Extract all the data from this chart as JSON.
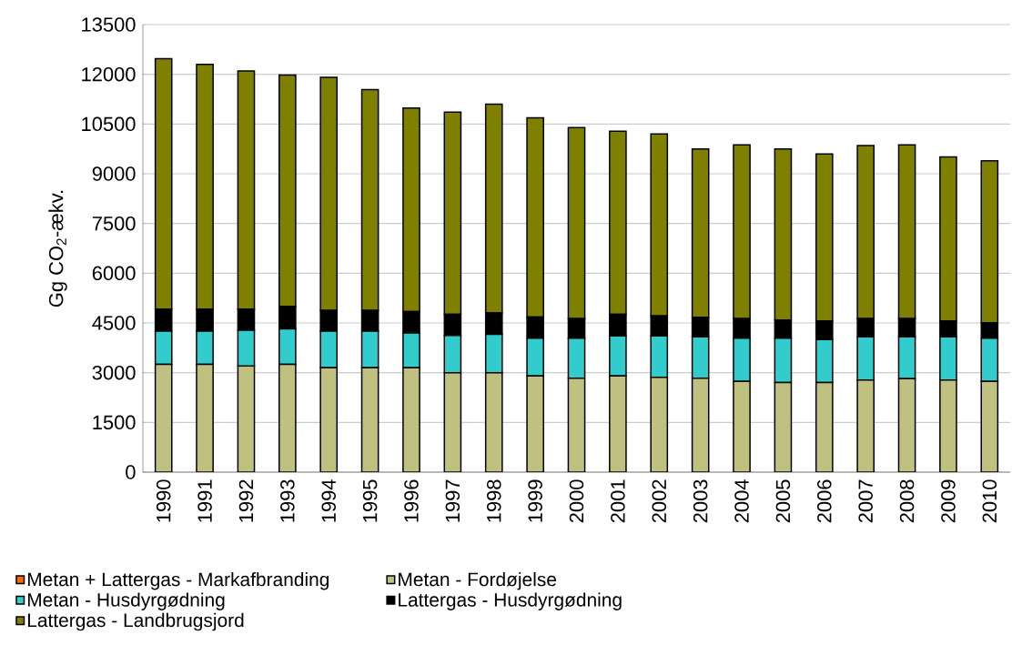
{
  "chart_data": {
    "type": "bar",
    "stacked": true,
    "ylabel": "Gg CO$_{2}$-ækv.",
    "categories": [
      "1990",
      "1991",
      "1992",
      "1993",
      "1994",
      "1995",
      "1996",
      "1997",
      "1998",
      "1999",
      "2000",
      "2001",
      "2002",
      "2003",
      "2004",
      "2005",
      "2006",
      "2007",
      "2008",
      "2009",
      "2010"
    ],
    "series": [
      {
        "name": "Metan + Lattergas - Markafbranding",
        "color": "#ff6600",
        "values": [
          0,
          0,
          0,
          0,
          0,
          0,
          0,
          0,
          0,
          0,
          0,
          0,
          0,
          0,
          0,
          0,
          0,
          0,
          0,
          0,
          0
        ]
      },
      {
        "name": "Metan - Fordøjelse",
        "color": "#c0c080",
        "values": [
          3250,
          3250,
          3200,
          3250,
          3150,
          3150,
          3150,
          3000,
          3000,
          2900,
          2830,
          2900,
          2860,
          2830,
          2740,
          2700,
          2700,
          2780,
          2820,
          2780,
          2740
        ]
      },
      {
        "name": "Metan - Husdyrgødning",
        "color": "#33cccc",
        "values": [
          1000,
          1000,
          1080,
          1070,
          1100,
          1100,
          1050,
          1120,
          1160,
          1140,
          1210,
          1210,
          1250,
          1250,
          1300,
          1340,
          1300,
          1300,
          1260,
          1300,
          1300
        ]
      },
      {
        "name": "Lattergas - Husdyrgødning",
        "color": "#000000",
        "values": [
          670,
          670,
          640,
          680,
          630,
          630,
          640,
          640,
          640,
          640,
          590,
          650,
          600,
          590,
          590,
          550,
          560,
          550,
          550,
          480,
          470
        ]
      },
      {
        "name": "Lattergas - Landbrugsjord",
        "color": "#808000",
        "values": [
          7550,
          7380,
          7180,
          6980,
          7030,
          6660,
          6140,
          6100,
          6300,
          6010,
          5760,
          5520,
          5490,
          5080,
          5240,
          5160,
          5040,
          5220,
          5240,
          4950,
          4880
        ]
      }
    ],
    "ylim": [
      0,
      13500
    ],
    "yticks": [
      0,
      1500,
      3000,
      4500,
      6000,
      7500,
      9000,
      10500,
      12000,
      13500
    ],
    "grid": "y",
    "legend": "bottom"
  }
}
